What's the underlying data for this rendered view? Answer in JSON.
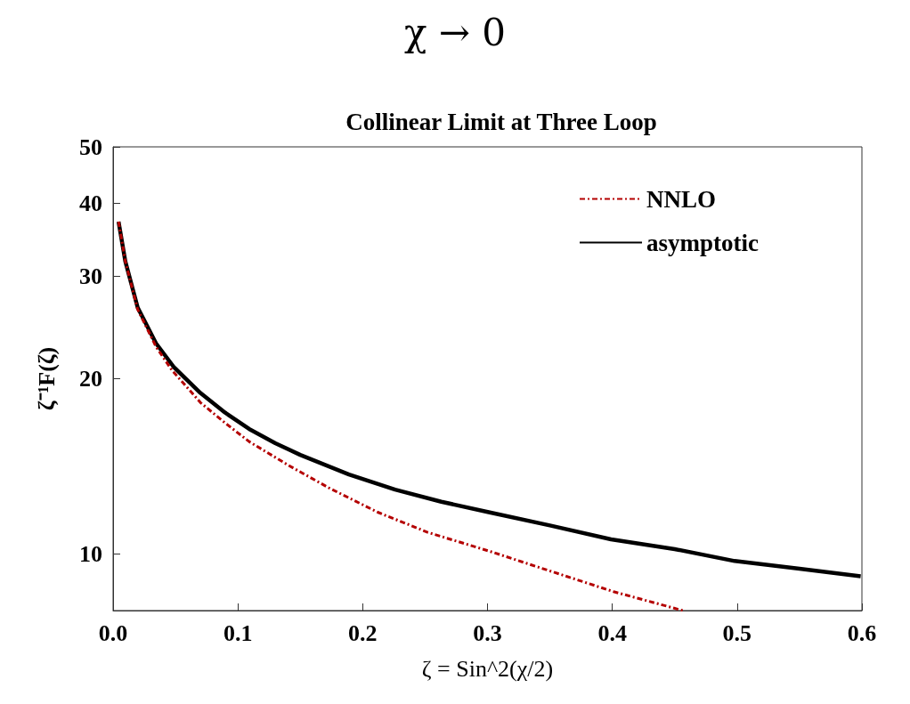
{
  "chart_data": {
    "type": "line",
    "title": "χ → 0",
    "subtitle": "Collinear Limit at Three Loop",
    "xlabel": "ζ = Sin^2(χ/2)",
    "ylabel": "ζ⁻¹F(ζ)",
    "log": "y",
    "xlim": [
      0,
      0.6
    ],
    "xticks": [
      {
        "value": 0,
        "label": "0.0"
      },
      {
        "value": 0.1,
        "label": "0.1"
      },
      {
        "value": 0.2,
        "label": "0.2"
      },
      {
        "value": 0.3,
        "label": "0.3"
      },
      {
        "value": 0.4,
        "label": "0.4"
      },
      {
        "value": 0.5,
        "label": "0.5"
      },
      {
        "value": 0.6,
        "label": "0.6"
      }
    ],
    "ylim": [
      8,
      50
    ],
    "yticks": [
      10,
      20,
      30,
      40,
      50
    ],
    "grid": false,
    "legend": "top right",
    "marker": "none",
    "series": [
      {
        "name": "NNLO",
        "color": "#b40000",
        "line_style": "dashed",
        "x": [
          0.0044,
          0.0098,
          0.0197,
          0.0344,
          0.047,
          0.07,
          0.0896,
          0.109,
          0.1406,
          0.1727,
          0.212,
          0.252,
          0.3025,
          0.3405,
          0.401,
          0.4566
        ],
        "values": [
          37.2,
          31.8,
          26.3,
          22.7,
          20.7,
          18.2,
          16.8,
          15.6,
          14.2,
          13.0,
          11.8,
          10.9,
          10.1,
          9.5,
          8.62,
          8.0
        ]
      },
      {
        "name": "asymptotic",
        "color": "#000000",
        "line_style": "solid",
        "x": [
          0.0044,
          0.0098,
          0.0197,
          0.0344,
          0.049,
          0.07,
          0.0896,
          0.109,
          0.13,
          0.15,
          0.189,
          0.226,
          0.263,
          0.301,
          0.35,
          0.399,
          0.45,
          0.498,
          0.55,
          0.599
        ],
        "values": [
          37.2,
          31.8,
          26.5,
          23.0,
          20.9,
          18.9,
          17.5,
          16.4,
          15.5,
          14.8,
          13.7,
          12.9,
          12.3,
          11.8,
          11.2,
          10.6,
          10.2,
          9.73,
          9.44,
          9.16
        ]
      }
    ]
  }
}
